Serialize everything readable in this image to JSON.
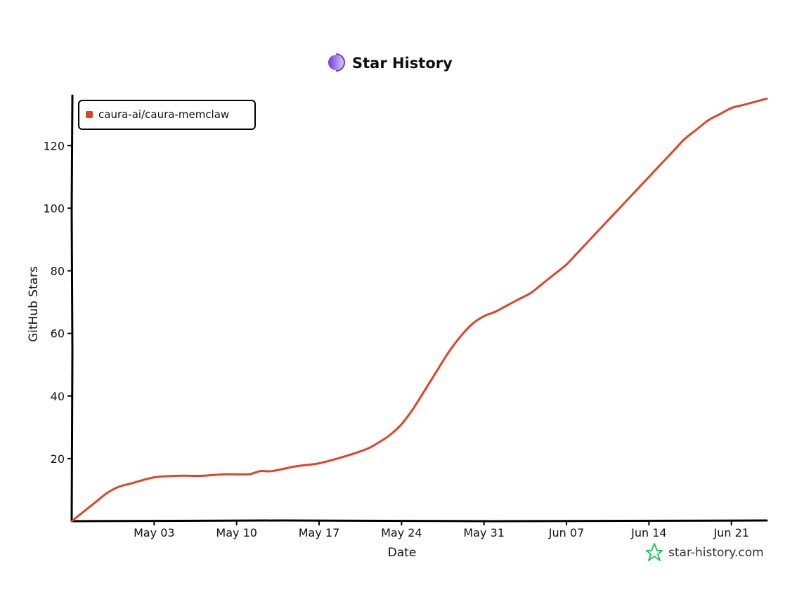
{
  "colors": {
    "series": "#dd4528",
    "axis": "#000000",
    "logo_start": "#6d3bdb",
    "logo_end": "#d7c8f7",
    "credit_icon": "#22c55e"
  },
  "icons": {
    "title_logo": "star-history-logo-icon",
    "credit_logo": "star-outline-icon"
  },
  "chart_data": {
    "type": "line",
    "title": "Star History",
    "xlabel": "Date",
    "ylabel": "GitHub Stars",
    "credit": "star-history.com",
    "x_start": "Apr 26",
    "x_end": "Jun 24",
    "ylim": [
      0,
      136
    ],
    "yticks": [
      20,
      40,
      60,
      80,
      100,
      120
    ],
    "xticks": [
      {
        "label": "May 03",
        "date": "May 03"
      },
      {
        "label": "May 10",
        "date": "May 10"
      },
      {
        "label": "May 17",
        "date": "May 17"
      },
      {
        "label": "May 24",
        "date": "May 24"
      },
      {
        "label": "May 31",
        "date": "May 31"
      },
      {
        "label": "Jun 07",
        "date": "Jun 07"
      },
      {
        "label": "Jun 14",
        "date": "Jun 14"
      },
      {
        "label": "Jun 21",
        "date": "Jun 21"
      }
    ],
    "grid": false,
    "legend": {
      "position": "top-left",
      "entries": [
        "caura-ai/caura-memclaw"
      ]
    },
    "series": [
      {
        "name": "caura-ai/caura-memclaw",
        "x": [
          "Apr 26",
          "Apr 28",
          "Apr 29",
          "Apr 30",
          "May 01",
          "May 03",
          "May 05",
          "May 07",
          "May 09",
          "May 11",
          "May 12",
          "May 13",
          "May 15",
          "May 17",
          "May 19",
          "May 21",
          "May 22",
          "May 23",
          "May 24",
          "May 25",
          "May 26",
          "May 27",
          "May 28",
          "May 29",
          "May 30",
          "May 31",
          "Jun 01",
          "Jun 02",
          "Jun 03",
          "Jun 04",
          "Jun 05",
          "Jun 06",
          "Jun 07",
          "Jun 08",
          "Jun 09",
          "Jun 10",
          "Jun 11",
          "Jun 12",
          "Jun 13",
          "Jun 14",
          "Jun 15",
          "Jun 16",
          "Jun 17",
          "Jun 18",
          "Jun 19",
          "Jun 20",
          "Jun 21",
          "Jun 22",
          "Jun 23",
          "Jun 24"
        ],
        "values": [
          0,
          6,
          9,
          11,
          12,
          14,
          14.5,
          14.5,
          15,
          15,
          16,
          16,
          17.5,
          18.5,
          20.5,
          23,
          25,
          27.5,
          31,
          36,
          42,
          48,
          54,
          59,
          63,
          65.5,
          67,
          69,
          71,
          73,
          76,
          79,
          82,
          86,
          90,
          94,
          98,
          102,
          106,
          110,
          114,
          118,
          122,
          125,
          128,
          130,
          132,
          133,
          134,
          135
        ]
      }
    ]
  }
}
